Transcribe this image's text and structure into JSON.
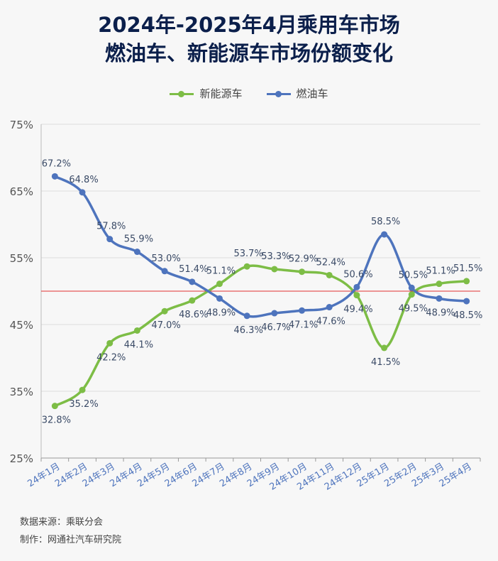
{
  "title_line1": "2024年-2025年4月乘用车市场",
  "title_line2": "燃油车、新能源车市场份额变化",
  "footer": {
    "source": "数据来源：乘联分会",
    "maker": "制作：网通社汽车研究院"
  },
  "colors": {
    "nev": "#7dbd46",
    "fuel": "#4e74bd",
    "reference_line": "#e03030",
    "grid": "#dcdcdc",
    "title": "#0b1f4b"
  },
  "chart_data": {
    "type": "line",
    "title": "2024年-2025年4月乘用车市场 燃油车、新能源车市场份额变化",
    "categories": [
      "24年1月",
      "24年2月",
      "24年3月",
      "24年4月",
      "24年5月",
      "24年6月",
      "24年7月",
      "24年8月",
      "24年9月",
      "24年10月",
      "24年11月",
      "24年12月",
      "25年1月",
      "25年2月",
      "25年3月",
      "25年4月"
    ],
    "series": [
      {
        "name": "新能源车",
        "color": "#7dbd46",
        "values": [
          32.8,
          35.2,
          42.2,
          44.1,
          47.0,
          48.6,
          51.1,
          53.7,
          53.3,
          52.9,
          52.4,
          49.4,
          41.5,
          49.5,
          51.1,
          51.5
        ],
        "labels": [
          "32.8%",
          "35.2%",
          "42.2%",
          "44.1%",
          "47.0%",
          "48.6%",
          "51.1%",
          "53.7%",
          "53.3%",
          "52.9%",
          "52.4%",
          "49.4%",
          "41.5%",
          "49.5%",
          "51.1%",
          "51.5%"
        ]
      },
      {
        "name": "燃油车",
        "color": "#4e74bd",
        "values": [
          67.2,
          64.8,
          57.8,
          55.9,
          53.0,
          51.4,
          48.9,
          46.3,
          46.7,
          47.1,
          47.6,
          50.6,
          58.5,
          50.5,
          48.9,
          48.5
        ],
        "labels": [
          "67.2%",
          "64.8%",
          "57.8%",
          "55.9%",
          "53.0%",
          "51.4%",
          "48.9%",
          "46.3%",
          "46.7%",
          "47.1%",
          "47.6%",
          "50.6%",
          "58.5%",
          "50.5%",
          "48.9%",
          "48.5%"
        ]
      }
    ],
    "ylim": [
      25,
      75
    ],
    "yticks": [
      25,
      35,
      45,
      55,
      65,
      75
    ],
    "ytick_labels": [
      "25%",
      "35%",
      "45%",
      "55%",
      "65%",
      "75%"
    ],
    "reference_line": 50,
    "grid": true,
    "legend_position": "top-center",
    "xlabel": "",
    "ylabel": ""
  }
}
